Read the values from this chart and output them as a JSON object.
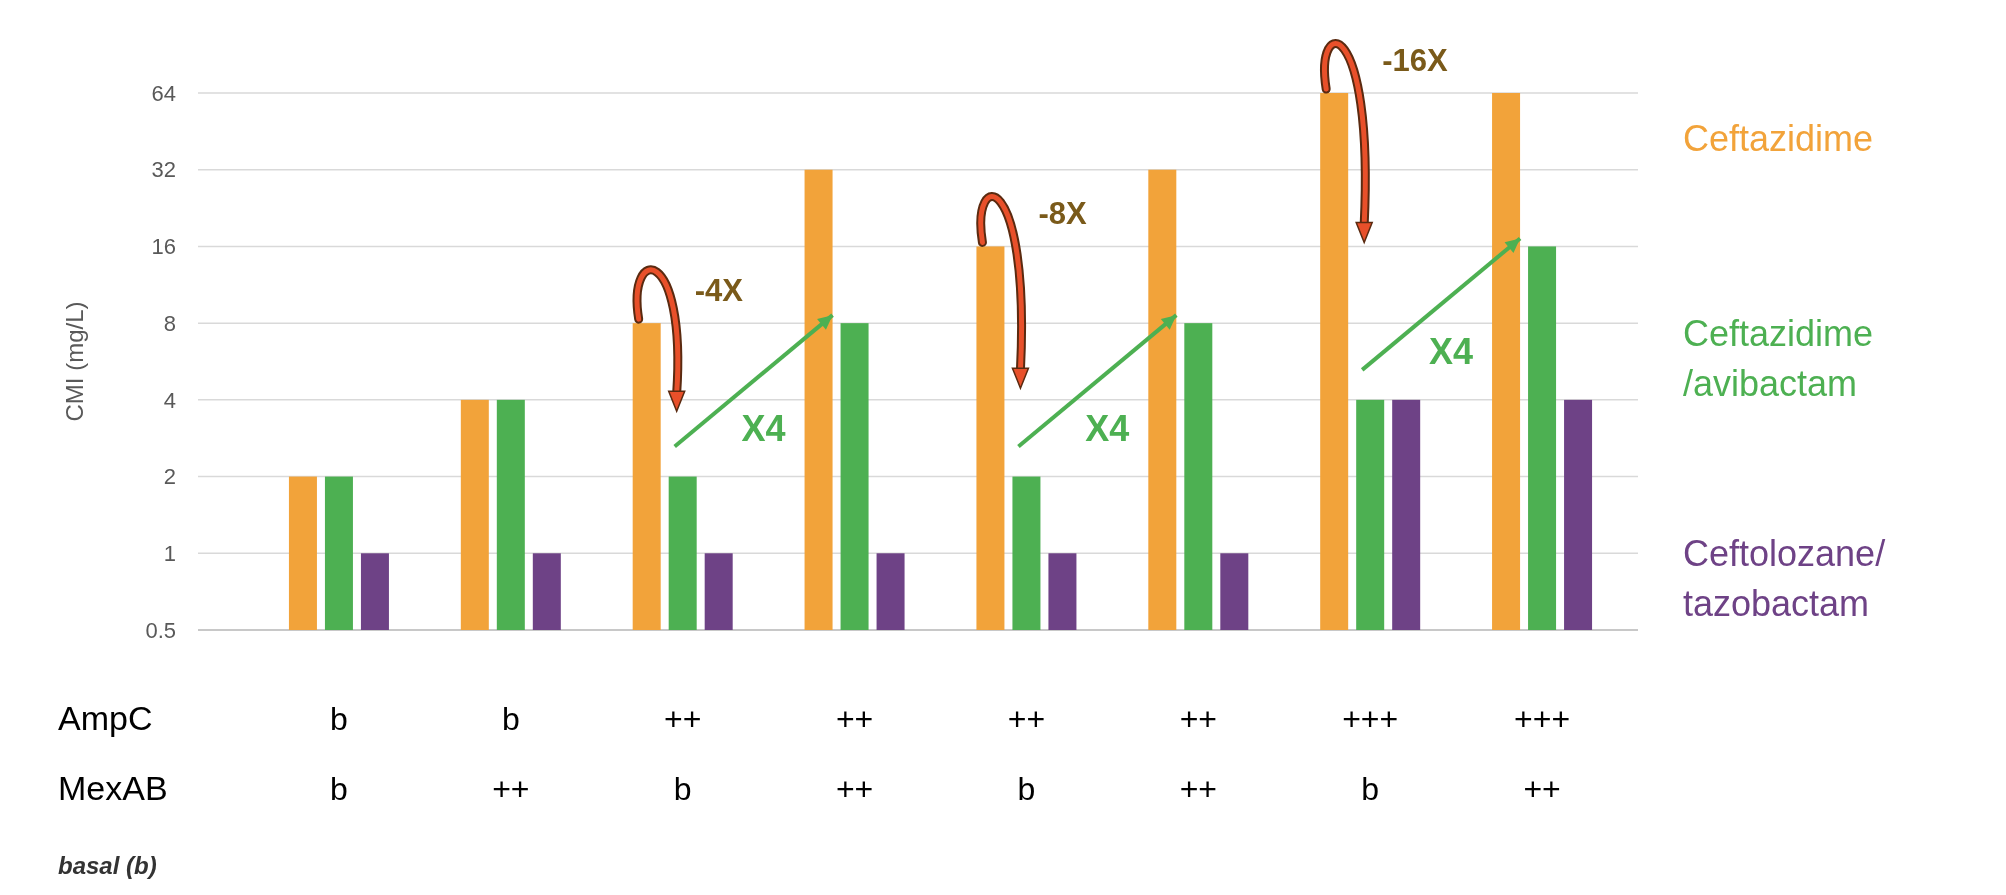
{
  "chart_data": {
    "type": "bar",
    "ylabel": "CMI (mg/L)",
    "log": "y",
    "ylim": [
      0.5,
      64
    ],
    "yticks": [
      0.5,
      1,
      2,
      4,
      8,
      16,
      32,
      64
    ],
    "grid": "y",
    "legend": "right",
    "categories": [
      "b\nb",
      "b\n++",
      "++\nb",
      "++\n++",
      "++\nb",
      "++\n++",
      "+++\nb",
      "+++\n++"
    ],
    "series": [
      {
        "name": "Ceftazidime",
        "color": "#f2a33a",
        "values": [
          2,
          4,
          8,
          32,
          16,
          32,
          64,
          64
        ]
      },
      {
        "name": "Ceftazidime /avibactam",
        "color": "#4db052",
        "values": [
          2,
          4,
          2,
          8,
          2,
          8,
          4,
          16
        ]
      },
      {
        "name": "Ceftolozane/ tazobactam",
        "color": "#6e4286",
        "values": [
          1,
          1,
          1,
          1,
          1,
          1,
          4,
          4
        ]
      }
    ],
    "annotations": [
      "AmpC",
      "MexAB",
      "basal (b)",
      "-4X",
      "X4",
      "-8X",
      "X4",
      "-16X",
      "X4"
    ]
  }
}
